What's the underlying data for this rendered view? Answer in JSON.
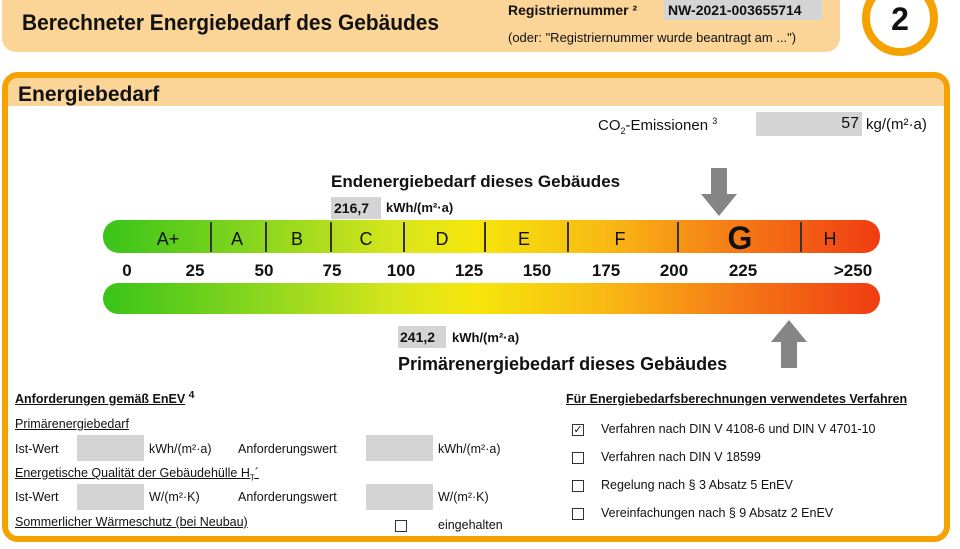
{
  "header": {
    "title": "Berechneter Energiebedarf des Gebäudes",
    "reg_label": "Registriernummer ²",
    "reg_value": "NW-2021-003655714",
    "reg_note": "(oder: \"Registriernummer wurde beantragt am ...\")",
    "page_number": "2"
  },
  "panel": {
    "title": "Energiebedarf",
    "co2": {
      "label": "CO",
      "sub": "2",
      "label_rest": "-Emissionen",
      "sup": "3",
      "value": "57",
      "unit": "kg/(m²·a)"
    },
    "endenergie": {
      "title": "Endenergiebedarf dieses Gebäudes",
      "value": "216,7",
      "unit": "kWh/(m²·a)",
      "numeric": 216.7
    },
    "primaerenergie": {
      "title": "Primärenergiebedarf dieses Gebäudes",
      "value": "241,2",
      "unit": "kWh/(m²·a)",
      "numeric": 241.2
    },
    "classes": [
      "A+",
      "A",
      "B",
      "C",
      "D",
      "E",
      "F",
      "G",
      "H"
    ],
    "active_class": "G",
    "scale_ticks": [
      "0",
      "25",
      "50",
      "75",
      "100",
      "125",
      "150",
      "175",
      "200",
      "225",
      ">250"
    ],
    "colors": {
      "orange": "#f5a200",
      "header_bg": "#fbd597",
      "field": "#d4d4d4"
    }
  },
  "requirements": {
    "title": "Anforderungen gemäß EnEV",
    "title_sup": "4",
    "primary_label": "Primärenergiebedarf",
    "ist_wert": "Ist-Wert",
    "anforderungswert": "Anforderungswert",
    "unit_kwh": "kWh/(m²·a)",
    "envelope_label": "Energetische Qualität der Gebäudehülle H",
    "envelope_sub": "T",
    "envelope_suffix": "´",
    "unit_wk": "W/(m²·K)",
    "summer_label": "Sommerlicher Wärmeschutz (bei Neubau)",
    "summer_check": "eingehalten"
  },
  "methods": {
    "title": "Für Energiebedarfsberechnungen verwendetes Verfahren",
    "items": [
      {
        "label": "Verfahren nach DIN V 4108-6 und DIN V 4701-10",
        "checked": true,
        "mark": "✓"
      },
      {
        "label": "Verfahren nach DIN V 18599",
        "checked": false
      },
      {
        "label": "Regelung nach § 3 Absatz 5 EnEV",
        "checked": false
      },
      {
        "label": "Vereinfachungen nach § 9 Absatz 2 EnEV",
        "checked": false
      }
    ]
  }
}
